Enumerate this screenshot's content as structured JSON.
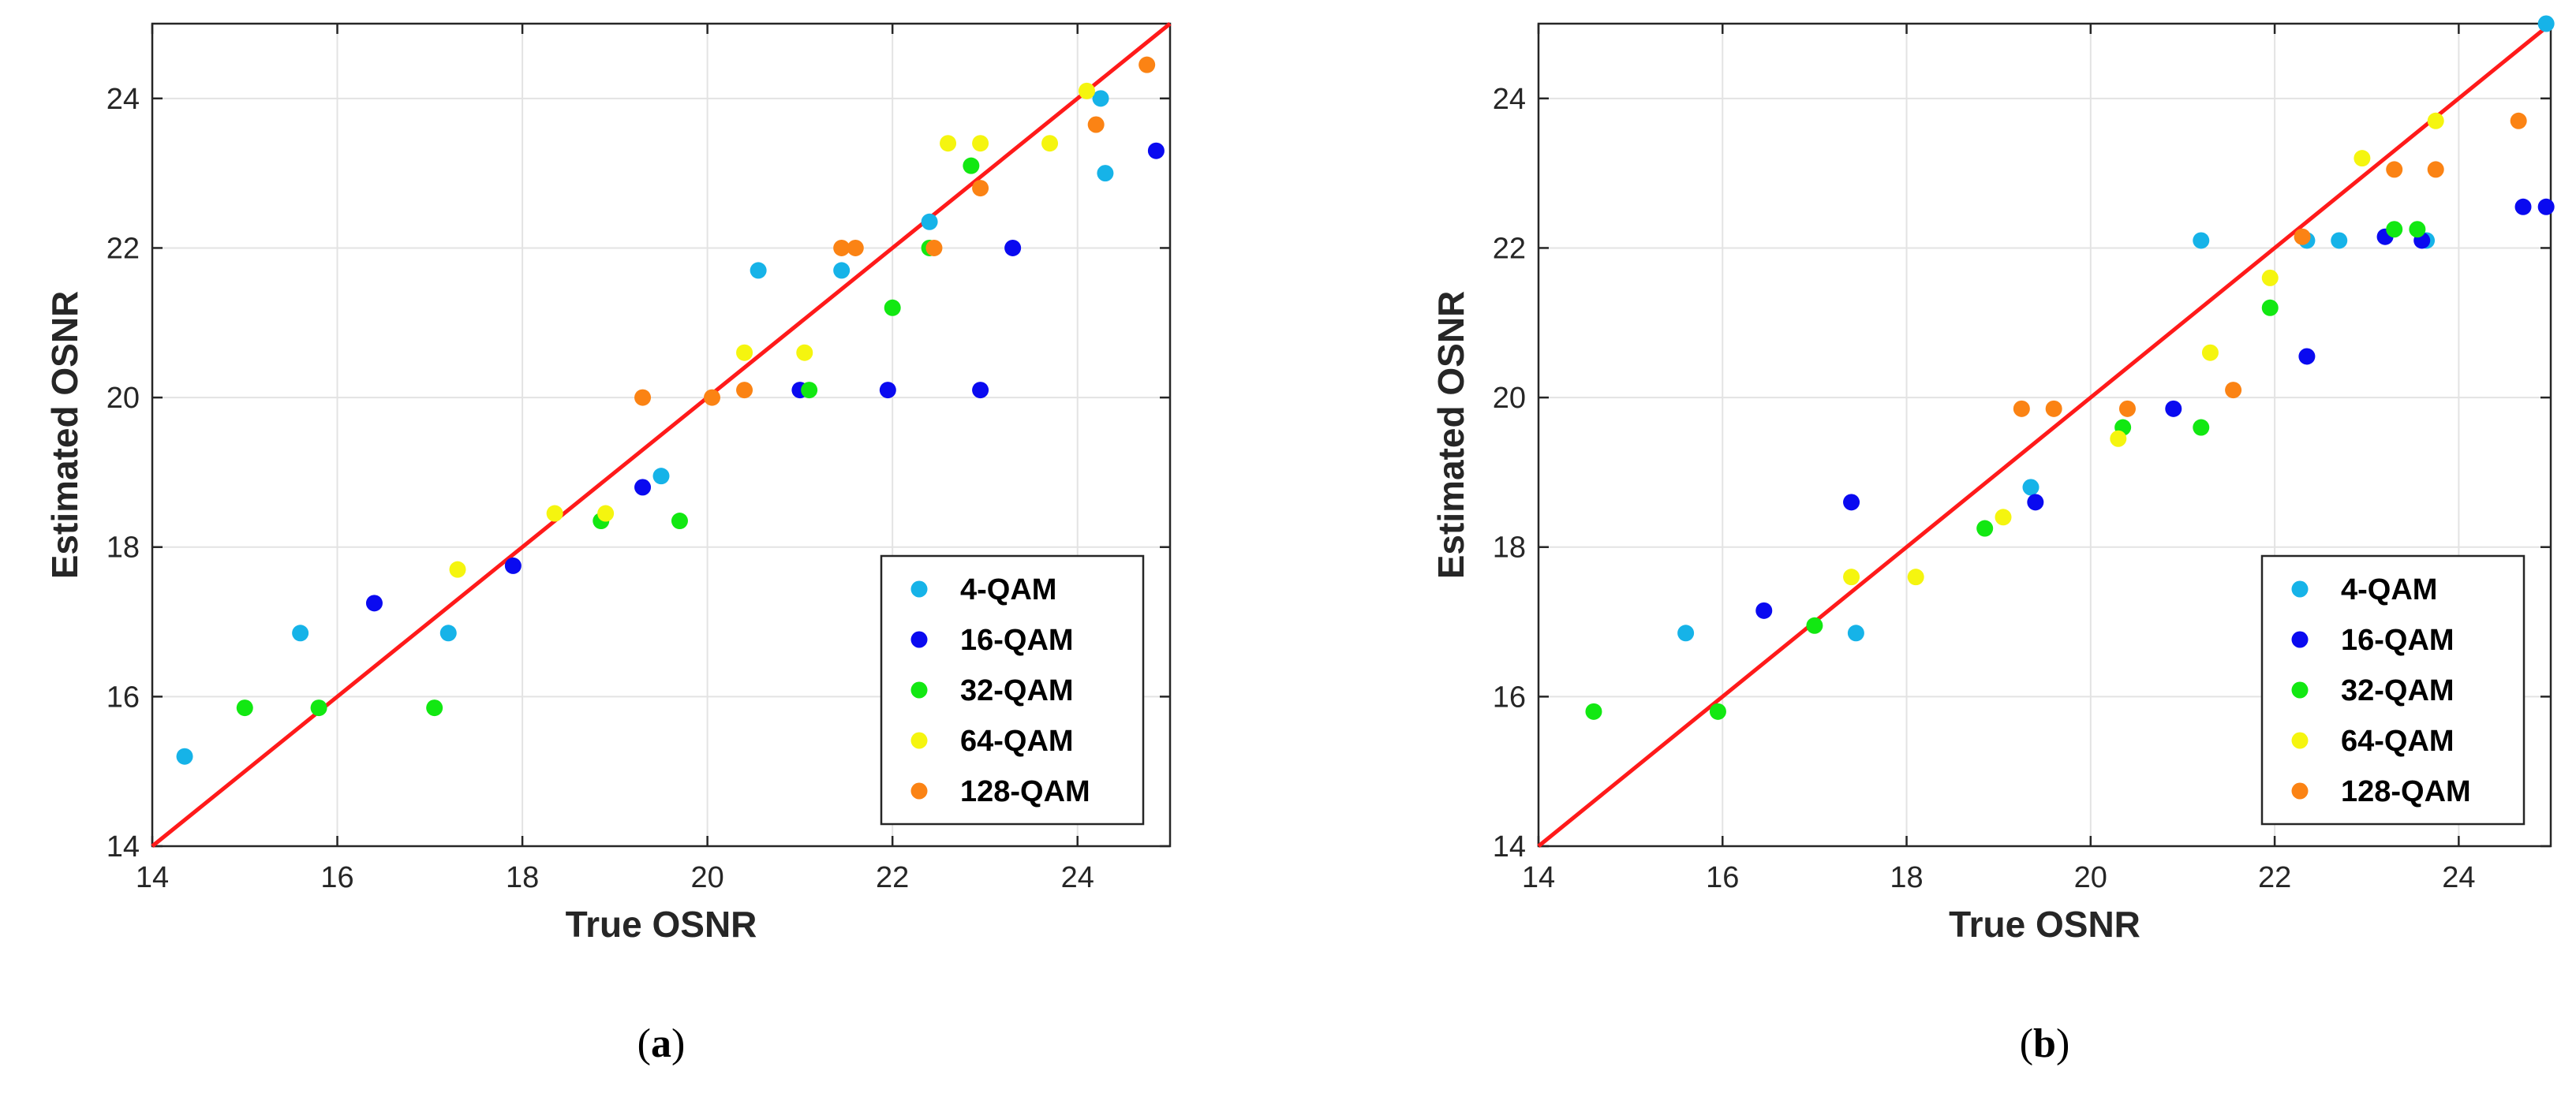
{
  "colors": {
    "4-QAM": "#16b3e8",
    "16-QAM": "#0a0af0",
    "32-QAM": "#12e812",
    "64-QAM": "#f5f50f",
    "128-QAM": "#fb8314",
    "identity_line": "#ff1a1a",
    "grid": "#e3e3e3",
    "axis": "#262626"
  },
  "chart_data": [
    {
      "type": "scatter",
      "panel_label": "a",
      "caption": {
        "open": "(",
        "letter": "a",
        "close": ")"
      },
      "xlabel": "True OSNR",
      "ylabel": "Estimated OSNR",
      "xlim": [
        14,
        25
      ],
      "ylim": [
        14,
        25
      ],
      "xticks": [
        "14",
        "16",
        "18",
        "20",
        "22",
        "24"
      ],
      "yticks": [
        "14",
        "16",
        "18",
        "20",
        "22",
        "24"
      ],
      "grid": true,
      "legend": "bottom-right",
      "reference_line": {
        "x": [
          14,
          25
        ],
        "y": [
          14,
          25
        ]
      },
      "series": [
        {
          "name": "4-QAM",
          "points": [
            [
              14.35,
              15.2
            ],
            [
              15.6,
              16.85
            ],
            [
              17.2,
              16.85
            ],
            [
              19.5,
              18.95
            ],
            [
              20.55,
              21.7
            ],
            [
              21.45,
              21.7
            ],
            [
              22.4,
              22.35
            ],
            [
              24.25,
              24.0
            ],
            [
              24.3,
              23.0
            ]
          ]
        },
        {
          "name": "16-QAM",
          "points": [
            [
              16.4,
              17.25
            ],
            [
              17.9,
              17.75
            ],
            [
              19.3,
              18.8
            ],
            [
              21.0,
              20.1
            ],
            [
              21.95,
              20.1
            ],
            [
              22.95,
              20.1
            ],
            [
              23.3,
              22.0
            ],
            [
              24.85,
              23.3
            ]
          ]
        },
        {
          "name": "32-QAM",
          "points": [
            [
              15.0,
              15.85
            ],
            [
              15.8,
              15.85
            ],
            [
              17.05,
              15.85
            ],
            [
              18.85,
              18.35
            ],
            [
              19.7,
              18.35
            ],
            [
              21.1,
              20.1
            ],
            [
              22.0,
              21.2
            ],
            [
              22.4,
              22.0
            ],
            [
              22.85,
              23.1
            ]
          ]
        },
        {
          "name": "64-QAM",
          "points": [
            [
              17.3,
              17.7
            ],
            [
              18.35,
              18.45
            ],
            [
              18.9,
              18.45
            ],
            [
              20.4,
              20.6
            ],
            [
              21.05,
              20.6
            ],
            [
              22.6,
              23.4
            ],
            [
              22.95,
              23.4
            ],
            [
              23.7,
              23.4
            ],
            [
              24.1,
              24.1
            ]
          ]
        },
        {
          "name": "128-QAM",
          "points": [
            [
              19.3,
              20.0
            ],
            [
              20.05,
              20.0
            ],
            [
              20.4,
              20.1
            ],
            [
              21.45,
              22.0
            ],
            [
              21.6,
              22.0
            ],
            [
              22.45,
              22.0
            ],
            [
              22.95,
              22.8
            ],
            [
              24.2,
              23.65
            ],
            [
              24.75,
              24.45
            ]
          ]
        }
      ]
    },
    {
      "type": "scatter",
      "panel_label": "b",
      "caption": {
        "open": "(",
        "letter": "b",
        "close": ")"
      },
      "xlabel": "True OSNR",
      "ylabel": "Estimated OSNR",
      "xlim": [
        14,
        25
      ],
      "ylim": [
        14,
        25
      ],
      "xticks": [
        "14",
        "16",
        "18",
        "20",
        "22",
        "24"
      ],
      "yticks": [
        "14",
        "16",
        "18",
        "20",
        "22",
        "24"
      ],
      "grid": true,
      "legend": "bottom-right",
      "reference_line": {
        "x": [
          14,
          25
        ],
        "y": [
          14,
          25
        ]
      },
      "series": [
        {
          "name": "4-QAM",
          "points": [
            [
              15.6,
              16.85
            ],
            [
              17.45,
              16.85
            ],
            [
              19.35,
              18.8
            ],
            [
              21.2,
              22.1
            ],
            [
              22.35,
              22.1
            ],
            [
              22.7,
              22.1
            ],
            [
              23.65,
              22.1
            ],
            [
              24.95,
              25.0
            ]
          ]
        },
        {
          "name": "16-QAM",
          "points": [
            [
              16.45,
              17.15
            ],
            [
              17.4,
              18.6
            ],
            [
              19.4,
              18.6
            ],
            [
              20.9,
              19.85
            ],
            [
              22.35,
              20.55
            ],
            [
              23.2,
              22.15
            ],
            [
              23.6,
              22.1
            ],
            [
              24.7,
              22.55
            ],
            [
              24.95,
              22.55
            ]
          ]
        },
        {
          "name": "32-QAM",
          "points": [
            [
              14.6,
              15.8
            ],
            [
              15.95,
              15.8
            ],
            [
              17.0,
              16.95
            ],
            [
              18.85,
              18.25
            ],
            [
              20.35,
              19.6
            ],
            [
              21.2,
              19.6
            ],
            [
              21.95,
              21.2
            ],
            [
              23.3,
              22.25
            ],
            [
              23.55,
              22.25
            ]
          ]
        },
        {
          "name": "64-QAM",
          "points": [
            [
              17.4,
              17.6
            ],
            [
              18.1,
              17.6
            ],
            [
              19.05,
              18.4
            ],
            [
              20.3,
              19.45
            ],
            [
              21.3,
              20.6
            ],
            [
              21.95,
              21.6
            ],
            [
              22.95,
              23.2
            ],
            [
              23.75,
              23.7
            ]
          ]
        },
        {
          "name": "128-QAM",
          "points": [
            [
              19.25,
              19.85
            ],
            [
              19.6,
              19.85
            ],
            [
              20.4,
              19.85
            ],
            [
              21.55,
              20.1
            ],
            [
              22.3,
              22.15
            ],
            [
              23.3,
              23.05
            ],
            [
              23.75,
              23.05
            ],
            [
              24.65,
              23.7
            ]
          ]
        }
      ]
    }
  ]
}
